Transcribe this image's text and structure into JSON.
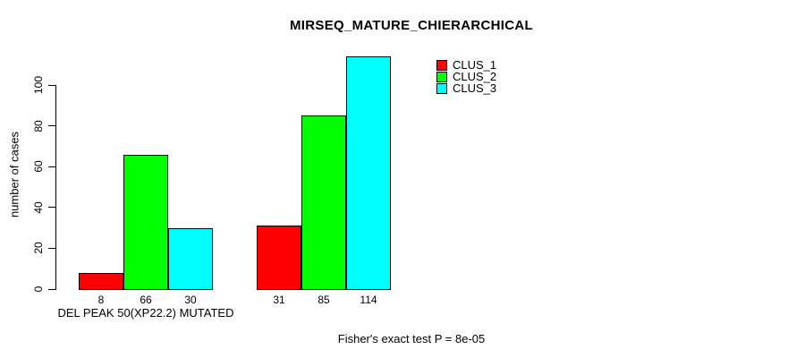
{
  "chart_data": {
    "type": "bar",
    "title": "MIRSEQ_MATURE_CHIERARCHICAL",
    "ylabel": "number of cases",
    "xlabel": "",
    "yticks": [
      0,
      20,
      40,
      60,
      80,
      100
    ],
    "ylim": [
      0,
      117
    ],
    "grid": false,
    "legend_position": "top-right",
    "categories": [
      "DEL PEAK 50(XP22.2) MUTATED",
      ""
    ],
    "series": [
      {
        "name": "CLUS_1",
        "color": "#ff0000",
        "values": [
          8,
          31
        ]
      },
      {
        "name": "CLUS_2",
        "color": "#00ff00",
        "values": [
          66,
          85
        ]
      },
      {
        "name": "CLUS_3",
        "color": "#00ffff",
        "values": [
          30,
          114
        ]
      }
    ],
    "bar_value_labels": [
      [
        8,
        66,
        30
      ],
      [
        31,
        85,
        114
      ]
    ],
    "annotation": "Fisher's exact test P = 8e-05"
  }
}
